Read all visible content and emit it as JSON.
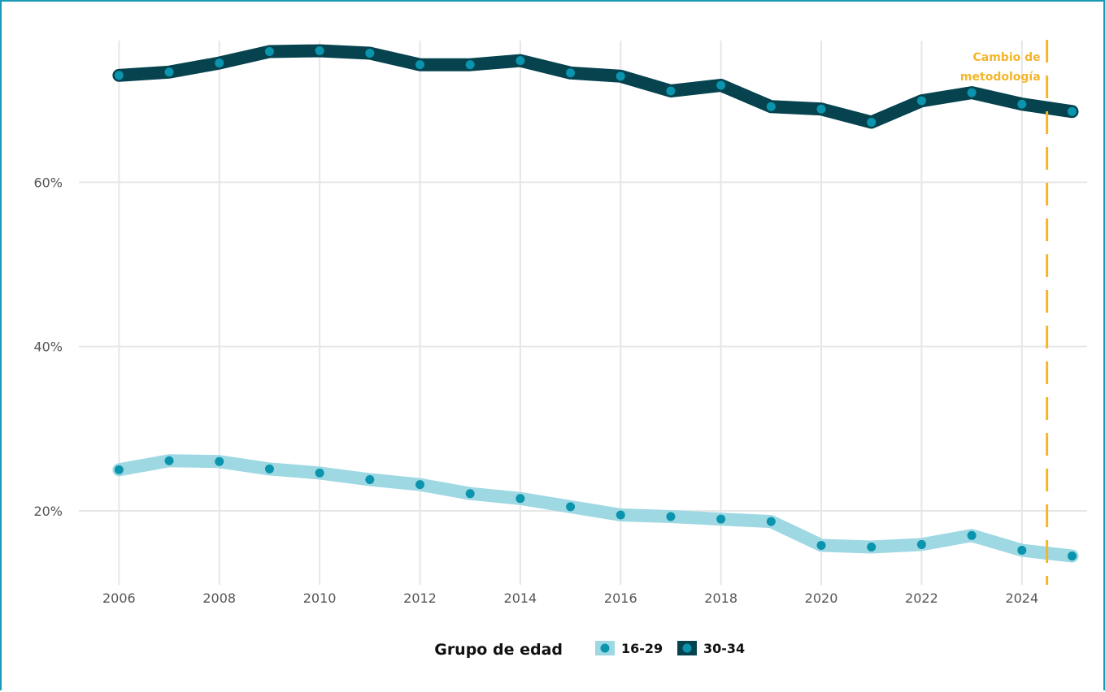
{
  "chart_data": {
    "type": "line",
    "title": "",
    "xlabel": "",
    "ylabel": "",
    "x": [
      2006,
      2007,
      2008,
      2009,
      2010,
      2011,
      2012,
      2013,
      2014,
      2015,
      2016,
      2017,
      2018,
      2019,
      2020,
      2021,
      2022,
      2023,
      2024,
      2025
    ],
    "xticks": [
      "2006",
      "2008",
      "2010",
      "2012",
      "2014",
      "2016",
      "2018",
      "2020",
      "2022",
      "2024"
    ],
    "xlim": [
      2005.2,
      2025.3
    ],
    "yticks": [
      "20%",
      "40%",
      "60%"
    ],
    "ylim": [
      11,
      80
    ],
    "grid": true,
    "legend_position": "bottom",
    "legend_title": "Grupo de edad",
    "series": [
      {
        "name": "16-29",
        "values": [
          25.0,
          26.1,
          26.0,
          25.1,
          24.6,
          23.8,
          23.2,
          22.1,
          21.5,
          20.5,
          19.5,
          19.3,
          19.0,
          18.7,
          15.8,
          15.6,
          15.9,
          17.0,
          15.2,
          14.5
        ],
        "line_color": "#9dd8e3",
        "point_color": "#0b94ad"
      },
      {
        "name": "30-34",
        "values": [
          73.0,
          73.4,
          74.5,
          75.9,
          76.0,
          75.7,
          74.3,
          74.3,
          74.8,
          73.3,
          72.9,
          71.1,
          71.8,
          69.2,
          68.9,
          67.3,
          69.9,
          70.9,
          69.5,
          68.6
        ],
        "line_color": "#06434f",
        "point_color": "#0b94ad"
      }
    ],
    "annotation": {
      "text": [
        "Cambio de",
        "metodología"
      ],
      "x": 2024.5,
      "color": "#f5b52a"
    }
  }
}
